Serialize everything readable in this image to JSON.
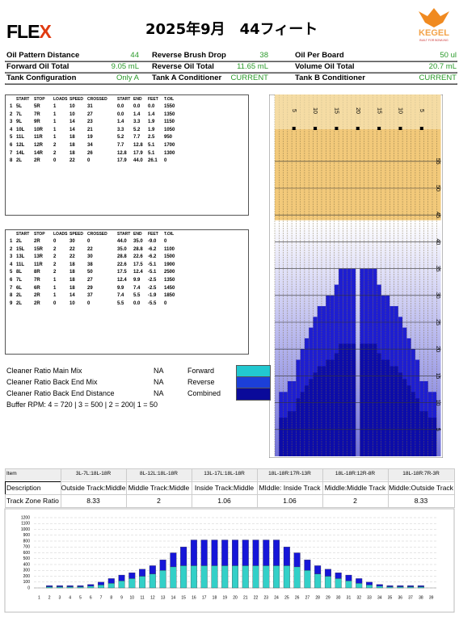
{
  "header": {
    "logo_main": "FLE",
    "logo_accent": "X",
    "title": "2025年9月　44フィート",
    "brand": "KEGEL",
    "brand_tagline": "BUILT FOR BOWLING"
  },
  "info": [
    [
      {
        "label": "Oil Pattern Distance",
        "value": "44"
      },
      {
        "label": "Reverse Brush Drop",
        "value": "38"
      },
      {
        "label": "Oil Per Board",
        "value": "50 ul"
      }
    ],
    [
      {
        "label": "Forward Oil Total",
        "value": "9.05 mL"
      },
      {
        "label": "Reverse Oil Total",
        "value": "11.65 mL"
      },
      {
        "label": "Volume Oil Total",
        "value": "20.7 mL"
      }
    ],
    [
      {
        "label": "Tank Configuration",
        "value": "Only A"
      },
      {
        "label": "Tank A Conditioner",
        "value": "CURRENT"
      },
      {
        "label": "Tank B Conditioner",
        "value": "CURRENT"
      }
    ]
  ],
  "forward_table": {
    "headers": [
      "START",
      "STOP",
      "LOADS",
      "SPEED",
      "CROSSED",
      "START",
      "END",
      "FEET",
      "T.OIL"
    ],
    "rows": [
      [
        "1",
        "5L",
        "5R",
        "1",
        "10",
        "31",
        "0.0",
        "0.0",
        "0.0",
        "1550"
      ],
      [
        "2",
        "7L",
        "7R",
        "1",
        "10",
        "27",
        "0.0",
        "1.4",
        "1.4",
        "1350"
      ],
      [
        "3",
        "9L",
        "9R",
        "1",
        "14",
        "23",
        "1.4",
        "3.3",
        "1.9",
        "1150"
      ],
      [
        "4",
        "10L",
        "10R",
        "1",
        "14",
        "21",
        "3.3",
        "5.2",
        "1.9",
        "1050"
      ],
      [
        "5",
        "11L",
        "11R",
        "1",
        "18",
        "19",
        "5.2",
        "7.7",
        "2.5",
        "950"
      ],
      [
        "6",
        "12L",
        "12R",
        "2",
        "18",
        "34",
        "7.7",
        "12.8",
        "5.1",
        "1700"
      ],
      [
        "7",
        "14L",
        "14R",
        "2",
        "18",
        "26",
        "12.8",
        "17.9",
        "5.1",
        "1300"
      ],
      [
        "8",
        "2L",
        "2R",
        "0",
        "22",
        "0",
        "17.9",
        "44.0",
        "26.1",
        "0"
      ]
    ]
  },
  "reverse_table": {
    "headers": [
      "START",
      "STOP",
      "LOADS",
      "SPEED",
      "CROSSED",
      "START",
      "END",
      "FEET",
      "T.OIL"
    ],
    "rows": [
      [
        "1",
        "2L",
        "2R",
        "0",
        "30",
        "0",
        "44.0",
        "35.0",
        "-9.0",
        "0"
      ],
      [
        "2",
        "15L",
        "15R",
        "2",
        "22",
        "22",
        "35.0",
        "28.8",
        "-6.2",
        "1100"
      ],
      [
        "3",
        "13L",
        "13R",
        "2",
        "22",
        "30",
        "28.8",
        "22.6",
        "-6.2",
        "1500"
      ],
      [
        "4",
        "11L",
        "11R",
        "2",
        "18",
        "38",
        "22.6",
        "17.5",
        "-5.1",
        "1900"
      ],
      [
        "5",
        "8L",
        "8R",
        "2",
        "18",
        "50",
        "17.5",
        "12.4",
        "-5.1",
        "2500"
      ],
      [
        "6",
        "7L",
        "7R",
        "1",
        "18",
        "27",
        "12.4",
        "9.9",
        "-2.5",
        "1350"
      ],
      [
        "7",
        "6L",
        "6R",
        "1",
        "18",
        "29",
        "9.9",
        "7.4",
        "-2.5",
        "1450"
      ],
      [
        "8",
        "2L",
        "2R",
        "1",
        "14",
        "37",
        "7.4",
        "5.5",
        "-1.9",
        "1850"
      ],
      [
        "9",
        "2L",
        "2R",
        "0",
        "10",
        "0",
        "5.5",
        "0.0",
        "-5.5",
        "0"
      ]
    ]
  },
  "cleaner": [
    {
      "label": "Cleaner Ratio Main Mix",
      "value": "NA",
      "legend": "Forward",
      "color": "#22c8d0"
    },
    {
      "label": "Cleaner Ratio Back End Mix",
      "value": "NA",
      "legend": "Reverse",
      "color": "#1c3fd8"
    },
    {
      "label": "Cleaner Ratio Back End Distance",
      "value": "NA",
      "legend": "Combined",
      "color": "#0a0a9a"
    }
  ],
  "buffer": "Buffer RPM: 4 = 720 | 3 = 500 | 2 = 200| 1 = 50",
  "lane": {
    "board_labels": [
      "5",
      "10",
      "15",
      "20",
      "15",
      "10",
      "5"
    ],
    "feet_labels": [
      "55",
      "50",
      "45",
      "40",
      "35",
      "30",
      "25",
      "20",
      "15",
      "10",
      "5"
    ]
  },
  "zone_table": {
    "rows": [
      [
        "Item",
        "3L-7L:18L-18R",
        "8L-12L:18L-18R",
        "13L-17L:18L-18R",
        "18L-18R:17R-13R",
        "18L-18R:12R-8R",
        "18L-18R:7R-3R"
      ],
      [
        "Description",
        "Outside Track:Middle",
        "Middle Track:Middle",
        "Inside Track:Middle",
        "MIddle: Inside Track",
        "Middle:Middle Track",
        "Middle:Outside Track"
      ],
      [
        "Track Zone Ratio",
        "8.33",
        "2",
        "1.06",
        "1.06",
        "2",
        "8.33"
      ]
    ]
  },
  "chart_data": {
    "type": "bar",
    "stacked": true,
    "categories": [
      "1",
      "2",
      "3",
      "4",
      "5",
      "6",
      "7",
      "8",
      "9",
      "10",
      "11",
      "12",
      "13",
      "14",
      "15",
      "16",
      "17",
      "18",
      "19",
      "20",
      "21",
      "22",
      "23",
      "24",
      "25",
      "26",
      "27",
      "28",
      "29",
      "30",
      "31",
      "32",
      "33",
      "34",
      "35",
      "36",
      "37",
      "38",
      "39"
    ],
    "series": [
      {
        "color": "#33d0c8",
        "values": [
          0,
          20,
          20,
          20,
          20,
          30,
          50,
          80,
          120,
          160,
          200,
          240,
          300,
          360,
          380,
          380,
          380,
          380,
          380,
          380,
          380,
          380,
          380,
          380,
          380,
          360,
          300,
          240,
          200,
          160,
          120,
          80,
          50,
          30,
          20,
          20,
          20,
          20,
          0
        ]
      },
      {
        "color": "#1616d8",
        "values": [
          0,
          20,
          20,
          20,
          20,
          30,
          50,
          80,
          100,
          100,
          120,
          140,
          180,
          240,
          320,
          440,
          440,
          440,
          440,
          440,
          440,
          440,
          440,
          440,
          320,
          240,
          180,
          140,
          120,
          100,
          100,
          80,
          50,
          30,
          20,
          20,
          20,
          20,
          0
        ]
      }
    ],
    "ylim": [
      0,
      1200
    ],
    "yticks": [
      0,
      100,
      200,
      300,
      400,
      500,
      600,
      700,
      800,
      900,
      1000,
      1100,
      1200
    ],
    "grid": true
  }
}
